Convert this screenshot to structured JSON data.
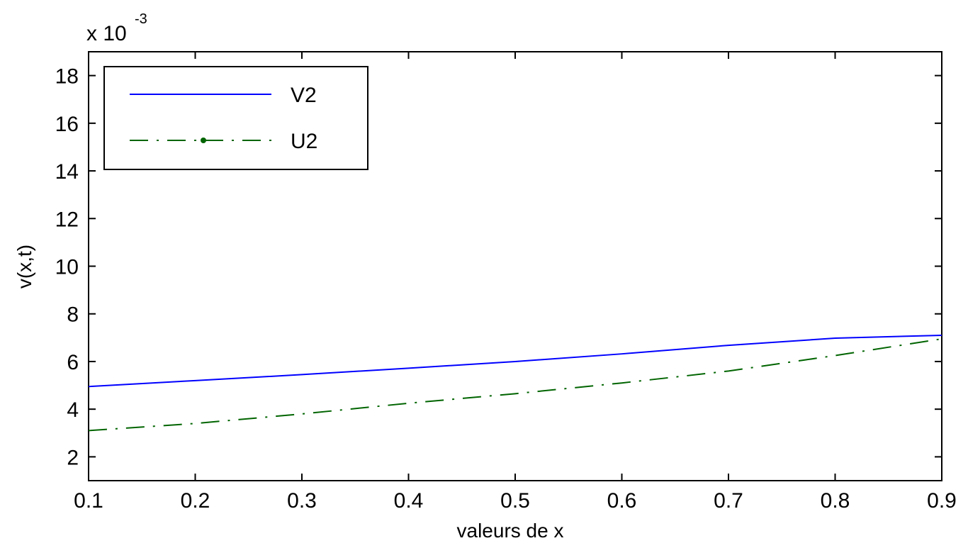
{
  "chart_data": {
    "type": "line",
    "title": "",
    "xlabel": "valeurs de x",
    "ylabel": "v(x,t)",
    "y_multiplier_label": {
      "base": "x 10",
      "exponent": "-3"
    },
    "xlim": [
      0.1,
      0.9
    ],
    "ylim": [
      1,
      19
    ],
    "x_ticks": [
      "0.1",
      "0.2",
      "0.3",
      "0.4",
      "0.5",
      "0.6",
      "0.7",
      "0.8",
      "0.9"
    ],
    "y_ticks": [
      "2",
      "4",
      "6",
      "8",
      "10",
      "12",
      "14",
      "16",
      "18"
    ],
    "grid": false,
    "legend_position": "top-left",
    "x": [
      0.1,
      0.2,
      0.3,
      0.4,
      0.5,
      0.6,
      0.7,
      0.8,
      0.9
    ],
    "series": [
      {
        "name": "V2",
        "values": [
          4.95,
          5.2,
          5.45,
          5.72,
          6.0,
          6.32,
          6.68,
          6.98,
          7.1
        ],
        "color": "#0000ff",
        "style": "solid"
      },
      {
        "name": "U2",
        "values": [
          3.1,
          3.4,
          3.8,
          4.25,
          4.65,
          5.1,
          5.6,
          6.25,
          6.95
        ],
        "color": "#006400",
        "style": "dashdot"
      }
    ]
  }
}
